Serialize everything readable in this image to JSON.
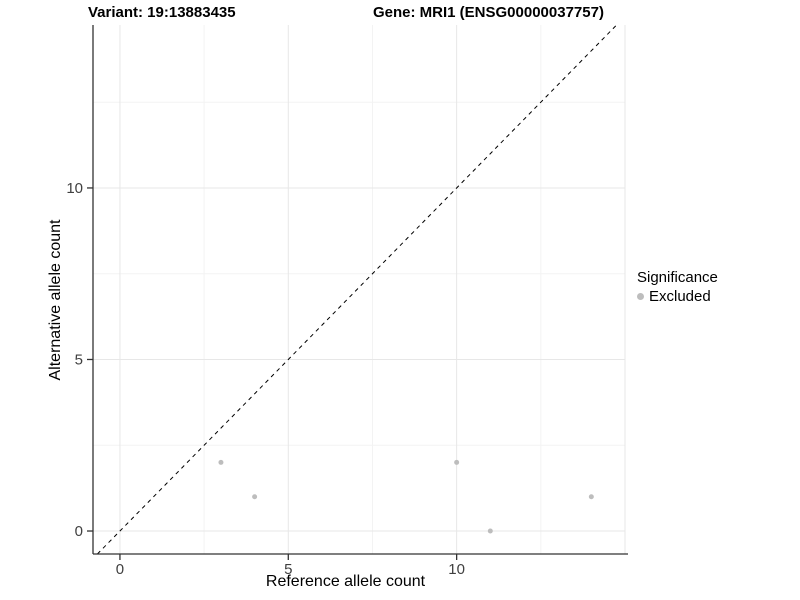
{
  "titles": {
    "variant": "Variant: 19:13883435",
    "gene": "Gene: MRI1 (ENSG00000037757)"
  },
  "legend": {
    "title": "Significance",
    "items": [
      {
        "label": "Excluded",
        "color": "#bdbdbd"
      }
    ]
  },
  "chart_data": {
    "type": "scatter",
    "title": "Variant: 19:13883435   Gene: MRI1 (ENSG00000037757)",
    "xlabel": "Reference allele count",
    "ylabel": "Alternative allele count",
    "xlim": [
      -0.8,
      15.0
    ],
    "ylim": [
      -0.67,
      14.75
    ],
    "x_ticks": [
      0,
      5,
      10
    ],
    "y_ticks": [
      0,
      5,
      10
    ],
    "x_major_grid": [
      0,
      5,
      10,
      15
    ],
    "y_major_grid": [
      0,
      5,
      10
    ],
    "x_minor_grid": [
      2.5,
      7.5,
      12.5
    ],
    "y_minor_grid": [
      2.5,
      7.5,
      12.5
    ],
    "grid": true,
    "legend_position": "right",
    "identity_line": {
      "style": "dashed",
      "slope": 1,
      "intercept": 0,
      "from": -0.67,
      "to": 14.75
    },
    "series": [
      {
        "name": "Excluded",
        "color": "#bdbdbd",
        "points": [
          [
            3,
            2
          ],
          [
            4,
            1
          ],
          [
            10,
            2
          ],
          [
            11,
            0
          ],
          [
            14,
            1
          ]
        ]
      }
    ],
    "colors": {
      "background": "#ffffff",
      "grid_major": "#e7e7e7",
      "grid_minor": "#f3f3f3",
      "axis_line": "#333333",
      "tick_label": "#404040",
      "identity_line": "#000000"
    }
  }
}
